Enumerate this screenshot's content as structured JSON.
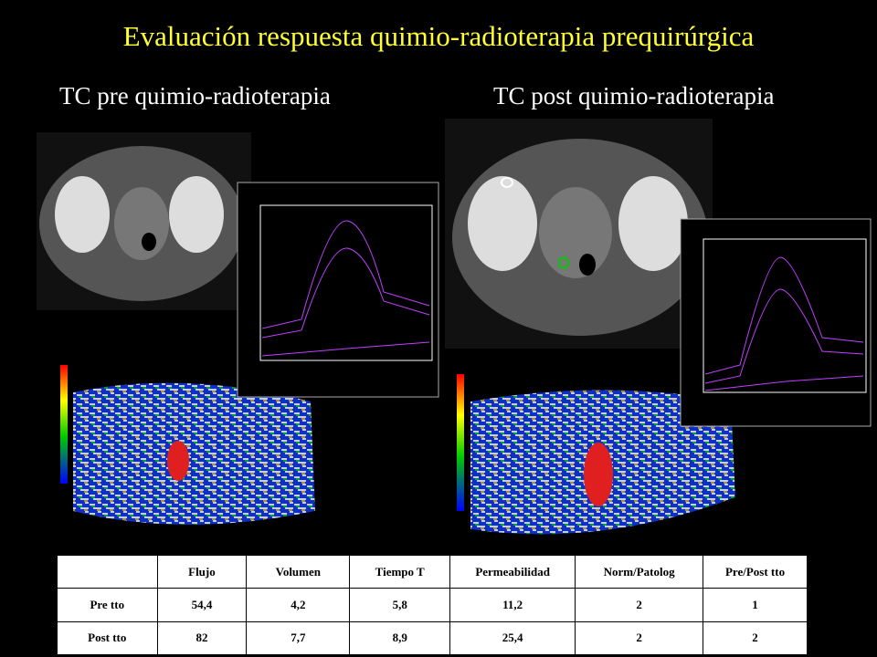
{
  "header": {
    "title": "Evaluación respuesta quimio-radioterapia prequirúrgica",
    "subtitles": [
      "TC pre quimio-radioterapia",
      "TC post quimio-radioterapia"
    ]
  },
  "table": {
    "header": [
      "Flujo",
      "Volumen",
      "Tiempo T",
      "Permeabilidad",
      "Norm/Patolog",
      "Pre/Post tto"
    ],
    "rows": [
      [
        "Pre tto",
        "54,4",
        "4,2",
        "5,8",
        "11,2",
        "2",
        "1"
      ],
      [
        "Post tto",
        "82",
        "7,7",
        "8,9",
        "25,4",
        "2",
        "2"
      ]
    ]
  }
}
